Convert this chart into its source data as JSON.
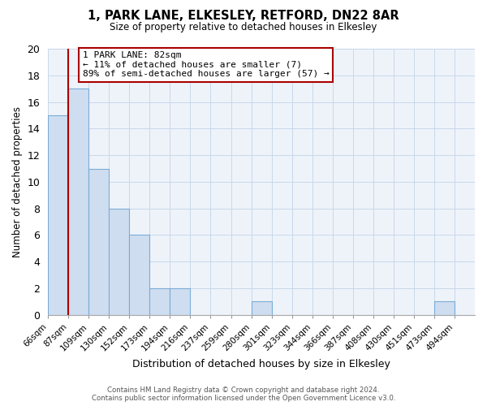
{
  "title": "1, PARK LANE, ELKESLEY, RETFORD, DN22 8AR",
  "subtitle": "Size of property relative to detached houses in Elkesley",
  "xlabel": "Distribution of detached houses by size in Elkesley",
  "ylabel": "Number of detached properties",
  "bin_labels": [
    "66sqm",
    "87sqm",
    "109sqm",
    "130sqm",
    "152sqm",
    "173sqm",
    "194sqm",
    "216sqm",
    "237sqm",
    "259sqm",
    "280sqm",
    "301sqm",
    "323sqm",
    "344sqm",
    "366sqm",
    "387sqm",
    "408sqm",
    "430sqm",
    "451sqm",
    "473sqm",
    "494sqm"
  ],
  "bar_values": [
    15,
    17,
    11,
    8,
    6,
    2,
    2,
    0,
    0,
    0,
    1,
    0,
    0,
    0,
    0,
    0,
    0,
    0,
    0,
    1,
    0
  ],
  "bar_color": "#cfddf0",
  "bar_edge_color": "#7aacd6",
  "ylim": [
    0,
    20
  ],
  "yticks": [
    0,
    2,
    4,
    6,
    8,
    10,
    12,
    14,
    16,
    18,
    20
  ],
  "annotation_title": "1 PARK LANE: 82sqm",
  "annotation_line1": "← 11% of detached houses are smaller (7)",
  "annotation_line2": "89% of semi-detached houses are larger (57) →",
  "footer_line1": "Contains HM Land Registry data © Crown copyright and database right 2024.",
  "footer_line2": "Contains public sector information licensed under the Open Government Licence v3.0.",
  "grid_color": "#c8d8ea",
  "red_line_color": "#aa0000",
  "red_line_bar_index": 0.5
}
